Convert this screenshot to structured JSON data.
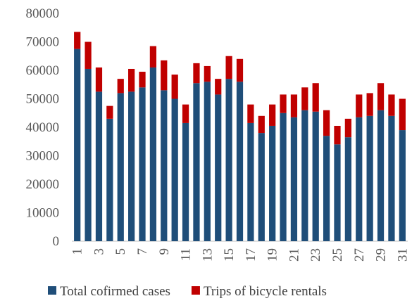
{
  "chart_data": {
    "type": "stacked_bar",
    "categories": [
      "1",
      null,
      "3",
      null,
      "5",
      null,
      "7",
      null,
      "9",
      null,
      "11",
      null,
      "13",
      null,
      "15",
      null,
      "17",
      null,
      "19",
      null,
      "21",
      null,
      "23",
      null,
      "25",
      null,
      "27",
      null,
      "29",
      null,
      "31"
    ],
    "series": [
      {
        "name": "Total cofirmed cases",
        "color": "#1f4e79",
        "values": [
          67500,
          60500,
          52500,
          43000,
          52000,
          52500,
          54000,
          61000,
          53000,
          50000,
          41500,
          55500,
          56000,
          51500,
          57000,
          56000,
          41500,
          38000,
          40500,
          45000,
          43500,
          46000,
          45500,
          37000,
          34000,
          36500,
          43500,
          44000,
          46000,
          44000,
          39000
        ]
      },
      {
        "name": "Trips of bicycle rentals",
        "color": "#c00000",
        "values": [
          6000,
          9500,
          8500,
          4500,
          5000,
          8000,
          5500,
          7500,
          10500,
          8500,
          6500,
          7000,
          5500,
          5500,
          8000,
          8000,
          6500,
          6000,
          7500,
          6500,
          8000,
          8000,
          10000,
          9000,
          6500,
          6500,
          8000,
          8000,
          9500,
          7500,
          11000
        ]
      }
    ],
    "ylim": [
      0,
      80000
    ],
    "yticks": [
      0,
      10000,
      20000,
      30000,
      40000,
      50000,
      60000,
      70000,
      80000
    ]
  }
}
